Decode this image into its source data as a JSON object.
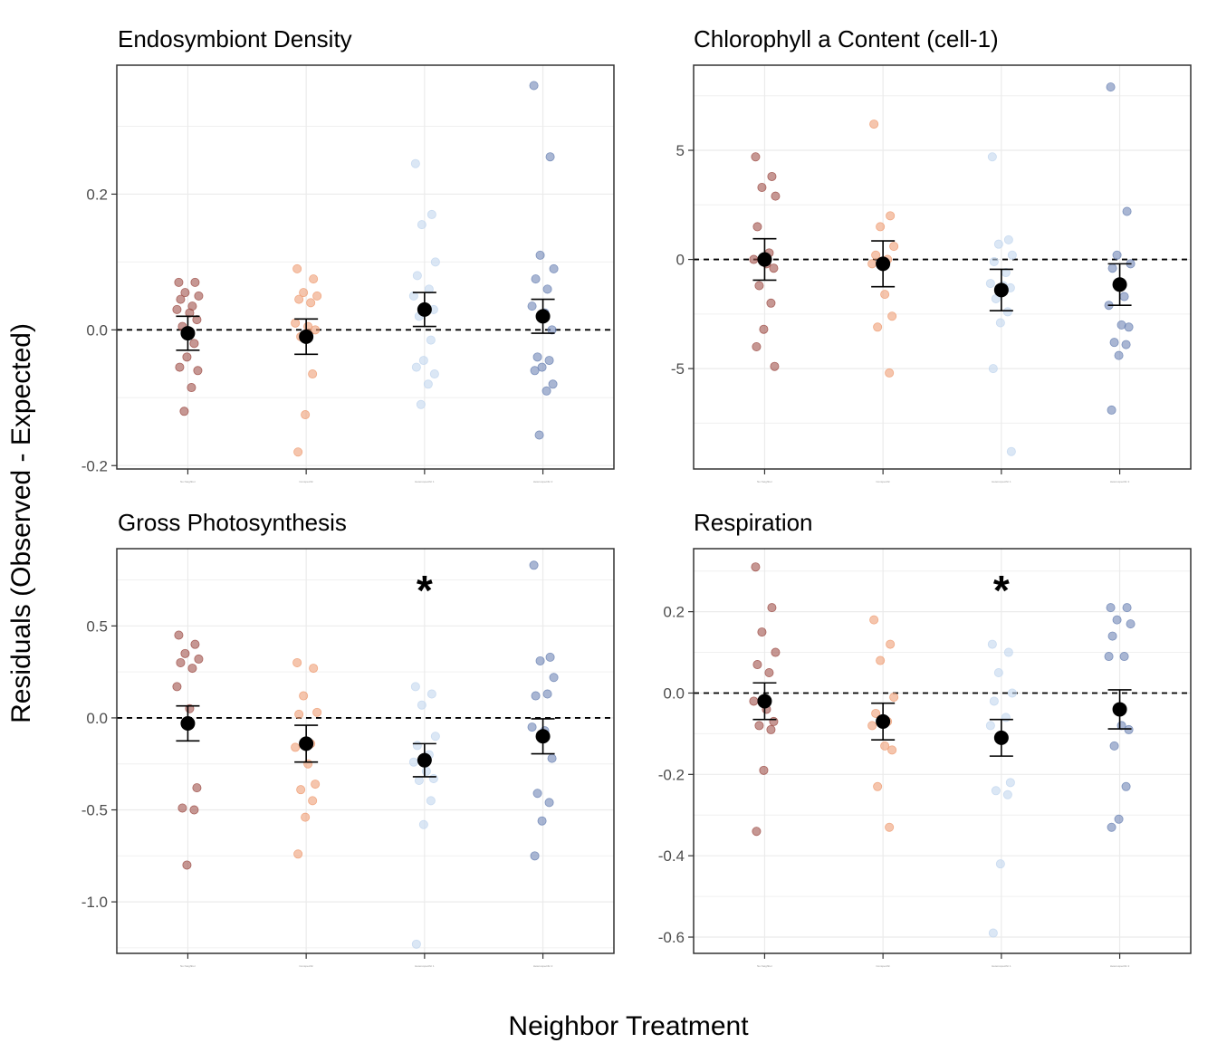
{
  "figure": {
    "ylabel": "Residuals (Observed - Expected)",
    "xlabel": "Neighbor Treatment"
  },
  "chart_data": [
    {
      "type": "scatter",
      "title": "Endosymbiont Density",
      "categories": [
        "No Neighbor",
        "Conspecific",
        "Heterospecific 1",
        "Heterospecific 2"
      ],
      "ylim": [
        -0.205,
        0.39
      ],
      "yticks": [
        -0.2,
        0.0,
        0.2
      ],
      "ytick_labels": [
        "-0.2",
        "0.0",
        "0.2"
      ],
      "significant": [
        false,
        false,
        false,
        false
      ],
      "series": [
        {
          "color": "#a0524b",
          "values": [
            0.07,
            0.07,
            0.055,
            0.05,
            0.045,
            0.035,
            0.03,
            0.025,
            0.015,
            0.005,
            -0.02,
            -0.04,
            -0.055,
            -0.06,
            -0.085,
            -0.12
          ],
          "mean": -0.005,
          "se": 0.025
        },
        {
          "color": "#ef9f76",
          "values": [
            0.09,
            0.075,
            0.055,
            0.05,
            0.045,
            0.04,
            0.01,
            0.005,
            0.0,
            -0.01,
            -0.065,
            -0.125,
            -0.18
          ],
          "mean": -0.01,
          "se": 0.026
        },
        {
          "color": "#c3d7ef",
          "values": [
            0.245,
            0.17,
            0.155,
            0.1,
            0.08,
            0.06,
            0.05,
            0.03,
            0.03,
            0.02,
            -0.015,
            -0.045,
            -0.055,
            -0.065,
            -0.08,
            -0.11
          ],
          "mean": 0.03,
          "se": 0.025
        },
        {
          "color": "#6f86b5",
          "values": [
            0.36,
            0.255,
            0.11,
            0.09,
            0.075,
            0.06,
            0.035,
            0.025,
            0.0,
            -0.04,
            -0.045,
            -0.055,
            -0.06,
            -0.08,
            -0.09,
            -0.155
          ],
          "mean": 0.02,
          "se": 0.025
        }
      ]
    },
    {
      "type": "scatter",
      "title": "Chlorophyll a Content (cell-1)",
      "categories": [
        "No Neighbor",
        "Conspecific",
        "Heterospecific 1",
        "Heterospecific 2"
      ],
      "ylim": [
        -9.6,
        8.9
      ],
      "yticks": [
        -5,
        0,
        5
      ],
      "ytick_labels": [
        "-5",
        "0",
        "5"
      ],
      "significant": [
        false,
        false,
        false,
        false
      ],
      "series": [
        {
          "color": "#a0524b",
          "values": [
            4.7,
            3.8,
            3.3,
            2.9,
            1.5,
            0.3,
            0.0,
            -0.2,
            -0.4,
            -1.2,
            -2.0,
            -3.2,
            -4.0,
            -4.9
          ],
          "mean": 0.0,
          "se": 0.95
        },
        {
          "color": "#ef9f76",
          "values": [
            6.2,
            2.0,
            1.5,
            0.6,
            0.2,
            0.0,
            -0.2,
            -1.6,
            -2.6,
            -3.1,
            -5.2
          ],
          "mean": -0.2,
          "se": 1.05
        },
        {
          "color": "#c3d7ef",
          "values": [
            4.7,
            0.9,
            0.7,
            0.2,
            -0.1,
            -0.6,
            -1.1,
            -1.2,
            -1.3,
            -1.8,
            -2.4,
            -2.9,
            -5.0,
            -8.8
          ],
          "mean": -1.4,
          "se": 0.95
        },
        {
          "color": "#6f86b5",
          "values": [
            7.9,
            2.2,
            0.2,
            -0.2,
            -0.4,
            -1.7,
            -2.1,
            -3.0,
            -3.1,
            -3.8,
            -3.9,
            -4.4,
            -6.9
          ],
          "mean": -1.15,
          "se": 0.95
        }
      ]
    },
    {
      "type": "scatter",
      "title": "Gross Photosynthesis",
      "categories": [
        "No Neighbor",
        "Conspecific",
        "Heterospecific 1",
        "Heterospecific 2"
      ],
      "ylim": [
        -1.28,
        0.92
      ],
      "yticks": [
        -1.0,
        -0.5,
        0.0,
        0.5
      ],
      "ytick_labels": [
        "-1.0",
        "-0.5",
        "0.0",
        "0.5"
      ],
      "significant": [
        false,
        false,
        true,
        false
      ],
      "significance_label": "*",
      "series": [
        {
          "color": "#a0524b",
          "values": [
            0.45,
            0.4,
            0.35,
            0.32,
            0.3,
            0.27,
            0.17,
            0.05,
            -0.38,
            -0.49,
            -0.5,
            -0.8
          ],
          "mean": -0.03,
          "se": 0.095
        },
        {
          "color": "#ef9f76",
          "values": [
            0.3,
            0.27,
            0.12,
            0.03,
            0.02,
            -0.14,
            -0.16,
            -0.25,
            -0.36,
            -0.39,
            -0.45,
            -0.54,
            -0.74
          ],
          "mean": -0.14,
          "se": 0.1
        },
        {
          "color": "#c3d7ef",
          "values": [
            0.17,
            0.13,
            0.07,
            -0.1,
            -0.15,
            -0.2,
            -0.24,
            -0.29,
            -0.33,
            -0.34,
            -0.45,
            -0.58,
            -1.23
          ],
          "mean": -0.23,
          "se": 0.09
        },
        {
          "color": "#6f86b5",
          "values": [
            0.83,
            0.33,
            0.31,
            0.22,
            0.12,
            0.13,
            -0.05,
            -0.07,
            -0.22,
            -0.41,
            -0.46,
            -0.56,
            -0.75
          ],
          "mean": -0.1,
          "se": 0.095
        }
      ]
    },
    {
      "type": "scatter",
      "title": "Respiration",
      "categories": [
        "No Neighbor",
        "Conspecific",
        "Heterospecific 1",
        "Heterospecific 2"
      ],
      "ylim": [
        -0.64,
        0.355
      ],
      "yticks": [
        -0.6,
        -0.4,
        -0.2,
        0.0,
        0.2
      ],
      "ytick_labels": [
        "-0.6",
        "-0.4",
        "-0.2",
        "0.0",
        "0.2"
      ],
      "significant": [
        false,
        false,
        true,
        false
      ],
      "significance_label": "*",
      "series": [
        {
          "color": "#a0524b",
          "values": [
            0.31,
            0.21,
            0.15,
            0.1,
            0.07,
            0.05,
            -0.02,
            -0.04,
            -0.07,
            -0.08,
            -0.09,
            -0.19,
            -0.34
          ],
          "mean": -0.02,
          "se": 0.045
        },
        {
          "color": "#ef9f76",
          "values": [
            0.18,
            0.12,
            0.08,
            -0.01,
            -0.05,
            -0.07,
            -0.08,
            -0.13,
            -0.14,
            -0.23,
            -0.33
          ],
          "mean": -0.07,
          "se": 0.045
        },
        {
          "color": "#c3d7ef",
          "values": [
            0.12,
            0.1,
            0.05,
            0.0,
            -0.02,
            -0.06,
            -0.08,
            -0.11,
            -0.22,
            -0.24,
            -0.25,
            -0.42,
            -0.59
          ],
          "mean": -0.11,
          "se": 0.045
        },
        {
          "color": "#6f86b5",
          "values": [
            0.21,
            0.21,
            0.18,
            0.17,
            0.14,
            0.09,
            0.09,
            -0.08,
            -0.09,
            -0.13,
            -0.23,
            -0.31,
            -0.33
          ],
          "mean": -0.04,
          "se": 0.048
        }
      ]
    }
  ]
}
